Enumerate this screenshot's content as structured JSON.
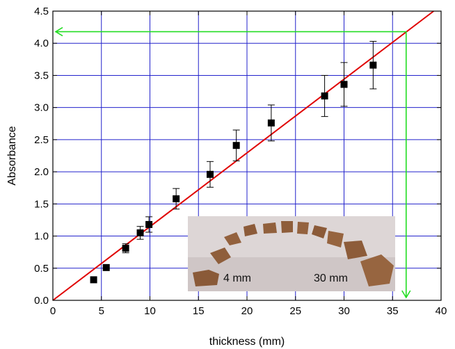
{
  "chart_data": {
    "type": "scatter",
    "title": "",
    "xlabel": "thickness (mm)",
    "ylabel": "Absorbance",
    "xlim": [
      0,
      40
    ],
    "ylim": [
      0.0,
      4.5
    ],
    "xticks": [
      0,
      5,
      10,
      15,
      20,
      25,
      30,
      35,
      40
    ],
    "xtick_labels": [
      "0",
      "5",
      "10",
      "15",
      "20",
      "25",
      "30",
      "35",
      "40"
    ],
    "yticks": [
      0.0,
      0.5,
      1.0,
      1.5,
      2.0,
      2.5,
      3.0,
      3.5,
      4.0,
      4.5
    ],
    "ytick_labels": [
      "0.0",
      "0.5",
      "1.0",
      "1.5",
      "2.0",
      "2.5",
      "3.0",
      "3.5",
      "4.0",
      "4.5"
    ],
    "grid": true,
    "series": [
      {
        "points": [
          {
            "x": 4.2,
            "y": 0.32,
            "err": 0.0
          },
          {
            "x": 5.5,
            "y": 0.51,
            "err": 0.0
          },
          {
            "x": 7.5,
            "y": 0.81,
            "err": 0.07
          },
          {
            "x": 9.0,
            "y": 1.05,
            "err": 0.1
          },
          {
            "x": 9.9,
            "y": 1.18,
            "err": 0.12
          },
          {
            "x": 12.7,
            "y": 1.58,
            "err": 0.16
          },
          {
            "x": 16.2,
            "y": 1.96,
            "err": 0.2
          },
          {
            "x": 18.9,
            "y": 2.41,
            "err": 0.24
          },
          {
            "x": 22.5,
            "y": 2.76,
            "err": 0.28
          },
          {
            "x": 28.0,
            "y": 3.18,
            "err": 0.32
          },
          {
            "x": 30.0,
            "y": 3.36,
            "err": 0.34
          },
          {
            "x": 33.0,
            "y": 3.66,
            "err": 0.37
          }
        ],
        "color": "#000000"
      }
    ],
    "fit_line": {
      "slope": 0.1147,
      "intercept": 0.0,
      "color": "#e00000"
    },
    "guide": {
      "x": 36.4,
      "y": 4.18,
      "color": "#22dd22"
    },
    "grid_color": "#2222cc",
    "inset": {
      "labels": [
        "4 mm",
        "30 mm"
      ]
    }
  }
}
